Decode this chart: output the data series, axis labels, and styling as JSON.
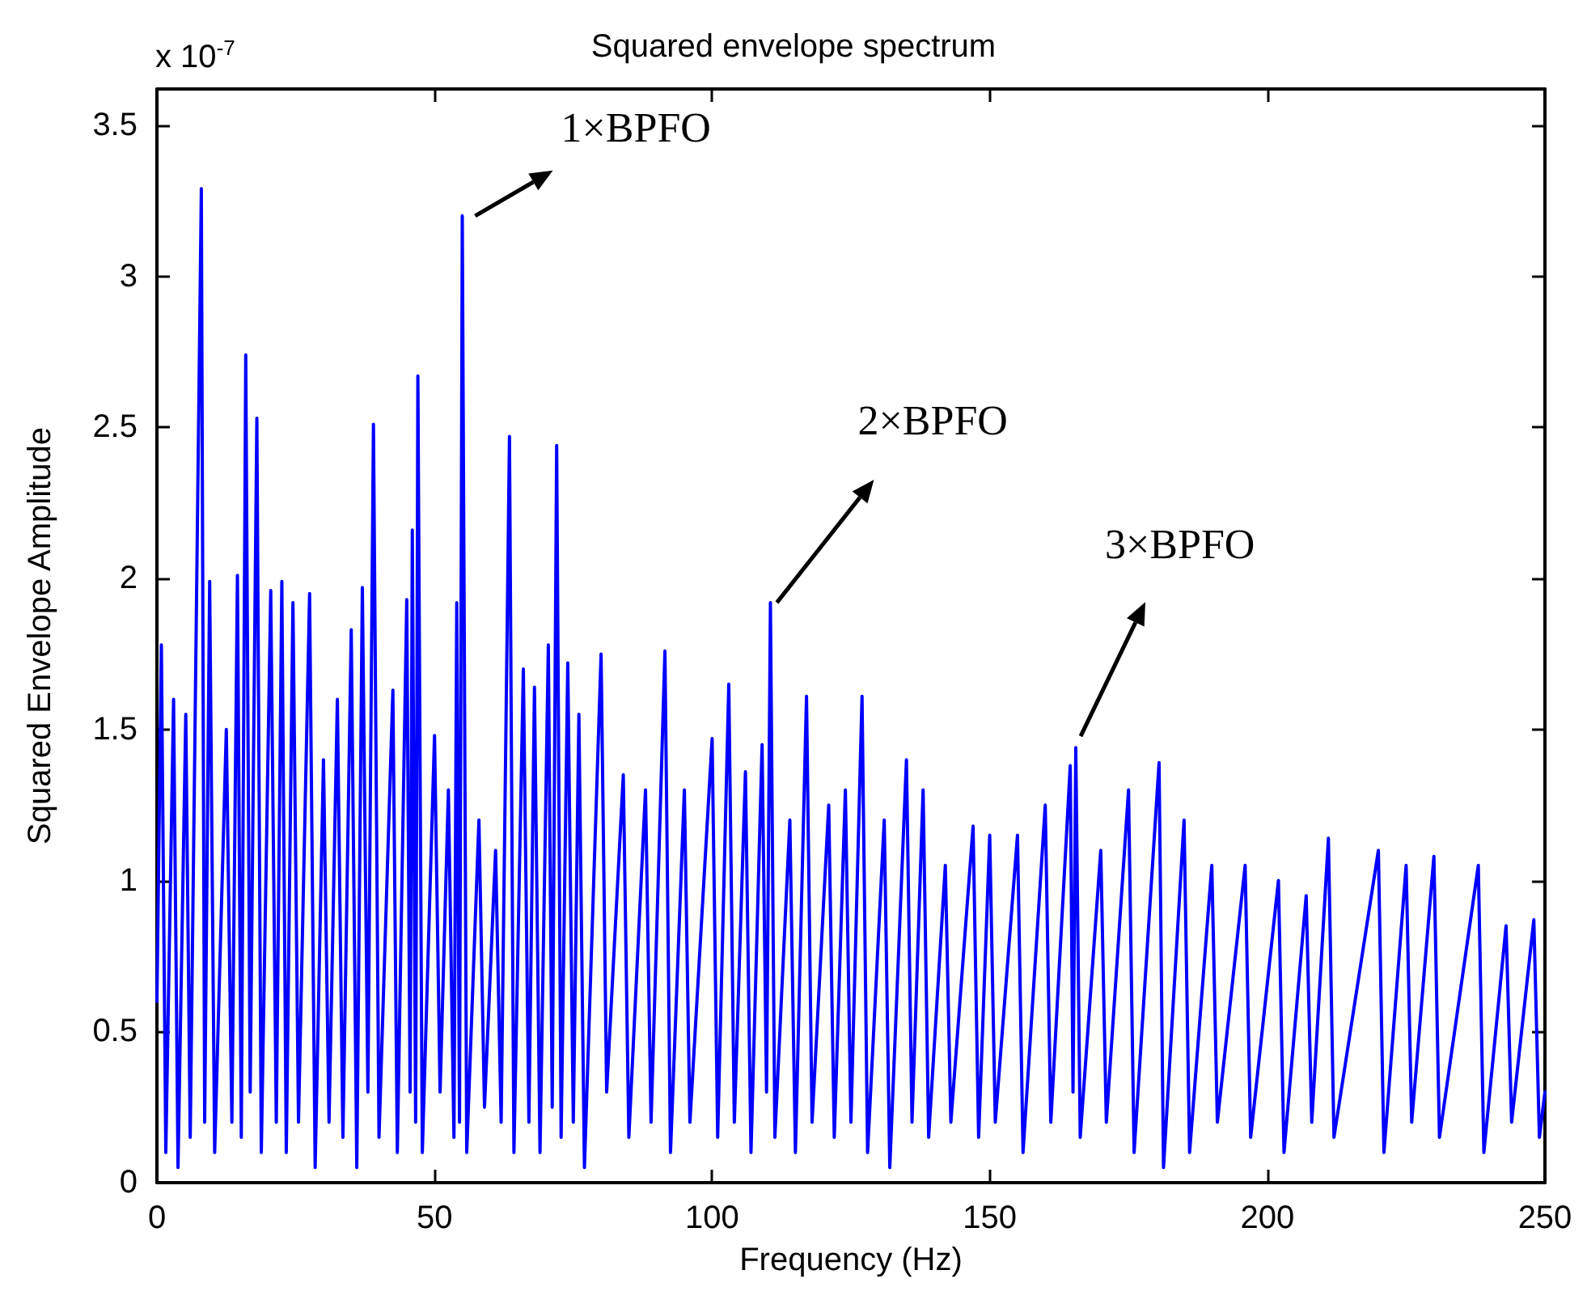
{
  "chart_data": {
    "type": "line",
    "title": "Squared envelope spectrum",
    "xlabel": "Frequency (Hz)",
    "ylabel": "Squared Envelope Amplitude",
    "annotations": [
      "x 10$^{-7}$",
      {
        "text": "1×BPFO",
        "x": 55,
        "y": 3.2
      },
      {
        "text": "2×BPFO",
        "x": 110.5,
        "y": 1.92
      },
      {
        "text": "3×BPFO",
        "x": 165.5,
        "y": 1.44
      }
    ],
    "xlim": [
      0,
      250
    ],
    "xticks": [
      0,
      50,
      100,
      150,
      200,
      250
    ],
    "ylim": [
      0,
      3.62
    ],
    "yticks": [
      0,
      0.5,
      1,
      1.5,
      2,
      2.5,
      3,
      3.5
    ],
    "grid": false,
    "marker": "none",
    "line_style": "solid",
    "series": [
      {
        "color": "#0000ff",
        "x": [
          0,
          0.8,
          1.6,
          3,
          3.8,
          5.2,
          6,
          8,
          8.6,
          9.5,
          10.4,
          12.5,
          13.5,
          14.5,
          15.2,
          16,
          16.8,
          18,
          18.8,
          20.5,
          21.5,
          22.5,
          23.3,
          24.5,
          25.5,
          27.5,
          28.5,
          30,
          31,
          32.5,
          33.5,
          35,
          36,
          37,
          38,
          39,
          40,
          42.5,
          43.3,
          45,
          45.6,
          46,
          46.6,
          47,
          47.8,
          50,
          51,
          52.5,
          53.5,
          54,
          54.5,
          55,
          55.8,
          58,
          59,
          61,
          62,
          63.5,
          64.3,
          66,
          67,
          68,
          69,
          70.5,
          71.2,
          72,
          72.8,
          74,
          75,
          76,
          77,
          80,
          81,
          84,
          85,
          88,
          89,
          91.5,
          92.5,
          95,
          96,
          100,
          101,
          103,
          104,
          106,
          107,
          109,
          109.8,
          110.5,
          111.3,
          114,
          115,
          117,
          118,
          121,
          122,
          124,
          125,
          127,
          128,
          131,
          132,
          135,
          136,
          138,
          139,
          142,
          143,
          147,
          148,
          150,
          151,
          155,
          156,
          160,
          161,
          164.5,
          165,
          165.5,
          166.3,
          170,
          171,
          175,
          176,
          180.5,
          181.3,
          185,
          186,
          190,
          191,
          196,
          197,
          202,
          203,
          207,
          208,
          211,
          212,
          220,
          221,
          225,
          226,
          230,
          231,
          238,
          239,
          243,
          244,
          248,
          249,
          250
        ],
        "values": [
          0.6,
          1.78,
          0.1,
          1.6,
          0.05,
          1.55,
          0.15,
          3.29,
          0.2,
          1.99,
          0.1,
          1.5,
          0.2,
          2.01,
          0.15,
          2.74,
          0.3,
          2.53,
          0.1,
          1.96,
          0.2,
          1.99,
          0.1,
          1.92,
          0.2,
          1.95,
          0.05,
          1.4,
          0.2,
          1.6,
          0.15,
          1.83,
          0.05,
          1.97,
          0.3,
          2.51,
          0.15,
          1.63,
          0.1,
          1.93,
          0.3,
          2.16,
          0.2,
          2.67,
          0.1,
          1.48,
          0.3,
          1.3,
          0.15,
          1.92,
          0.2,
          3.2,
          0.1,
          1.2,
          0.25,
          1.1,
          0.2,
          2.47,
          0.1,
          1.7,
          0.2,
          1.64,
          0.1,
          1.78,
          0.25,
          2.44,
          0.15,
          1.72,
          0.2,
          1.55,
          0.05,
          1.75,
          0.3,
          1.35,
          0.15,
          1.3,
          0.2,
          1.76,
          0.1,
          1.3,
          0.2,
          1.47,
          0.15,
          1.65,
          0.2,
          1.36,
          0.1,
          1.45,
          0.3,
          1.92,
          0.15,
          1.2,
          0.1,
          1.61,
          0.2,
          1.25,
          0.15,
          1.3,
          0.2,
          1.61,
          0.1,
          1.2,
          0.05,
          1.4,
          0.2,
          1.3,
          0.15,
          1.05,
          0.2,
          1.18,
          0.15,
          1.15,
          0.2,
          1.15,
          0.1,
          1.25,
          0.2,
          1.38,
          0.3,
          1.44,
          0.15,
          1.1,
          0.2,
          1.3,
          0.1,
          1.39,
          0.05,
          1.2,
          0.1,
          1.05,
          0.2,
          1.05,
          0.15,
          1.0,
          0.1,
          0.95,
          0.2,
          1.14,
          0.15,
          1.1,
          0.1,
          1.05,
          0.2,
          1.08,
          0.15,
          1.05,
          0.1,
          0.85,
          0.2,
          0.87,
          0.15,
          0.3
        ]
      }
    ]
  }
}
